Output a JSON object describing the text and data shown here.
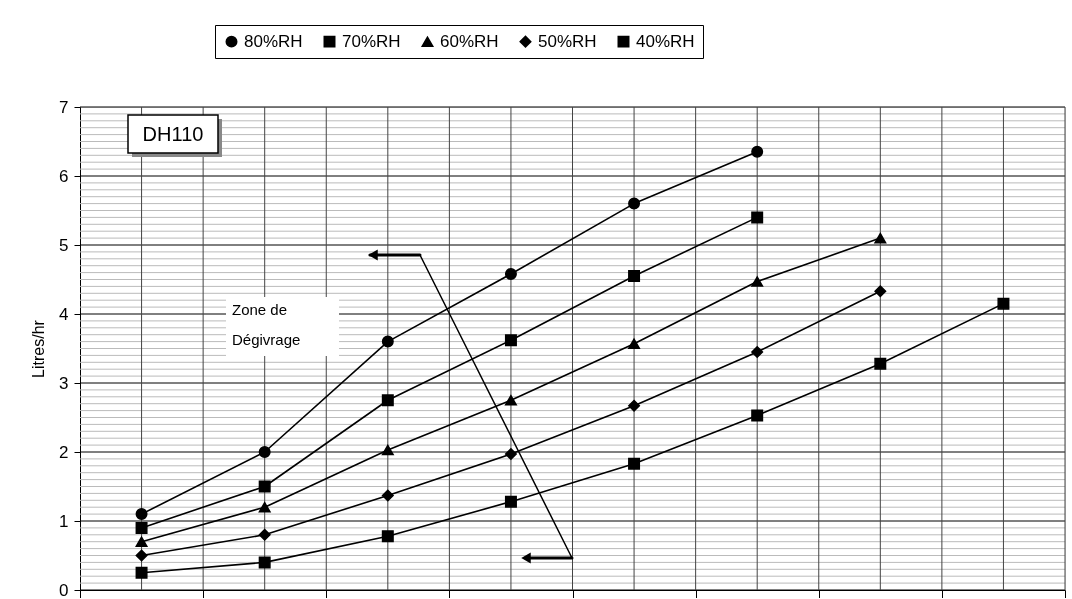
{
  "chart_data": {
    "type": "line",
    "categories": [
      null,
      null,
      null,
      null,
      null,
      null,
      null,
      null
    ],
    "ylabel": "Litres/hr",
    "ylim": [
      0,
      7
    ],
    "yticks": [
      0,
      1,
      2,
      3,
      4,
      5,
      6,
      7
    ],
    "grid": true,
    "legend": "top",
    "tick_labels": "y",
    "line_style": "solid",
    "annotations": [
      "DH110",
      "Zone de\nDégivrage"
    ],
    "series": [
      {
        "name": "80%RH",
        "color": "#000000",
        "marker": "circle",
        "values": [
          1.1,
          2.0,
          3.6,
          4.58,
          5.6,
          6.35,
          null,
          null
        ]
      },
      {
        "name": "70%RH",
        "color": "#000000",
        "marker": "square",
        "values": [
          0.9,
          1.5,
          2.75,
          3.62,
          4.55,
          5.4,
          null,
          null
        ]
      },
      {
        "name": "60%RH",
        "color": "#000000",
        "marker": "triangle",
        "values": [
          0.7,
          1.2,
          2.03,
          2.75,
          3.57,
          4.47,
          5.1,
          null
        ]
      },
      {
        "name": "50%RH",
        "color": "#000000",
        "marker": "diamond",
        "values": [
          0.5,
          0.8,
          1.37,
          1.97,
          2.67,
          3.45,
          4.33,
          null
        ]
      },
      {
        "name": "40%RH",
        "color": "#000000",
        "marker": "square",
        "values": [
          0.25,
          0.4,
          0.78,
          1.28,
          1.83,
          2.53,
          3.28,
          4.15
        ]
      }
    ]
  }
}
